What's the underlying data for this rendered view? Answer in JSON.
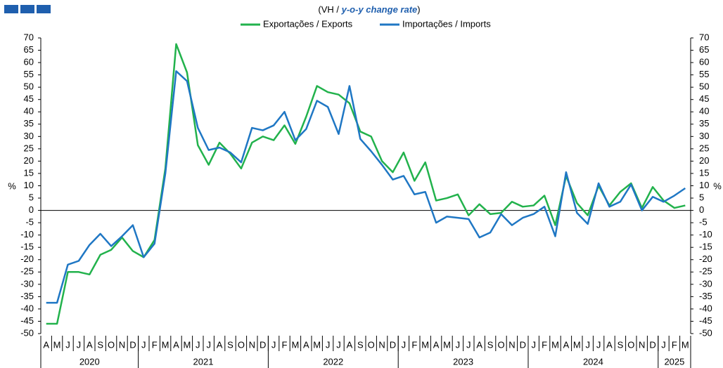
{
  "chart_data": {
    "type": "line",
    "title": [
      "(VH / ",
      "y-o-y change rate",
      ")"
    ],
    "y_label": "%",
    "y2_label": "%",
    "categories": [
      "A",
      "M",
      "J",
      "J",
      "A",
      "S",
      "O",
      "N",
      "D",
      "J",
      "F",
      "M",
      "A",
      "M",
      "J",
      "J",
      "A",
      "S",
      "O",
      "N",
      "D",
      "J",
      "F",
      "M",
      "A",
      "M",
      "J",
      "J",
      "A",
      "S",
      "O",
      "N",
      "D",
      "J",
      "F",
      "M",
      "A",
      "M",
      "J",
      "J",
      "A",
      "S",
      "O",
      "N",
      "D",
      "J",
      "F",
      "M",
      "A",
      "M",
      "J",
      "J",
      "A",
      "S",
      "O",
      "N",
      "D",
      "J",
      "F",
      "M"
    ],
    "years": [
      "2020",
      "2021",
      "2022",
      "2023",
      "2024",
      "2025"
    ],
    "series": [
      {
        "name": "Exportações / Exports",
        "color": "#22b24c",
        "values": [
          -46,
          -46,
          -25,
          -25,
          -26,
          -18,
          -16,
          -11,
          -16.5,
          -19,
          -12,
          17,
          67.5,
          56,
          26.5,
          18.5,
          27.5,
          23,
          17,
          27.5,
          30,
          28.5,
          34.5,
          27,
          38,
          50.5,
          48,
          47,
          43.5,
          32,
          30,
          20,
          15.5,
          23.5,
          12,
          19.5,
          4,
          5,
          6.5,
          -2,
          2.5,
          -1.5,
          -1,
          3.5,
          1.5,
          2,
          6,
          -6,
          14,
          3,
          -2,
          10,
          2,
          7.5,
          11,
          1,
          9.5,
          4,
          1,
          2
        ]
      },
      {
        "name": "Importações / Imports",
        "color": "#1f77c4",
        "values": [
          -37.5,
          -37.5,
          -22,
          -20.5,
          -14,
          -9.5,
          -14.5,
          -10.5,
          -6,
          -19,
          -13.5,
          15,
          56.5,
          52.5,
          33.5,
          24.5,
          25.5,
          23.5,
          19.5,
          33.5,
          32.5,
          34.5,
          40,
          28.5,
          33,
          44.5,
          42,
          31,
          50.5,
          29,
          24,
          18.5,
          12.5,
          14,
          6.5,
          7.5,
          -5,
          -2.5,
          -3,
          -3.5,
          -11,
          -9,
          -1.5,
          -6,
          -3,
          -1.5,
          1.5,
          -10.5,
          15.5,
          -1,
          -5.5,
          11,
          1.5,
          3.5,
          10.5,
          0,
          5.5,
          3.5,
          6,
          9
        ]
      }
    ],
    "ylim": [
      -50,
      70
    ],
    "yticks": [
      -50,
      -45,
      -40,
      -35,
      -30,
      -25,
      -20,
      -15,
      -10,
      -5,
      0,
      5,
      10,
      15,
      20,
      25,
      30,
      35,
      40,
      45,
      50,
      55,
      60,
      65,
      70
    ],
    "y2lim": [
      -50,
      70
    ],
    "y2ticks": [
      -50,
      -45,
      -40,
      -35,
      -30,
      -25,
      -20,
      -15,
      -10,
      -5,
      0,
      5,
      10,
      15,
      20,
      25,
      30,
      35,
      40,
      45,
      50,
      55,
      60,
      65,
      70
    ],
    "legend": "top",
    "grid": false
  }
}
